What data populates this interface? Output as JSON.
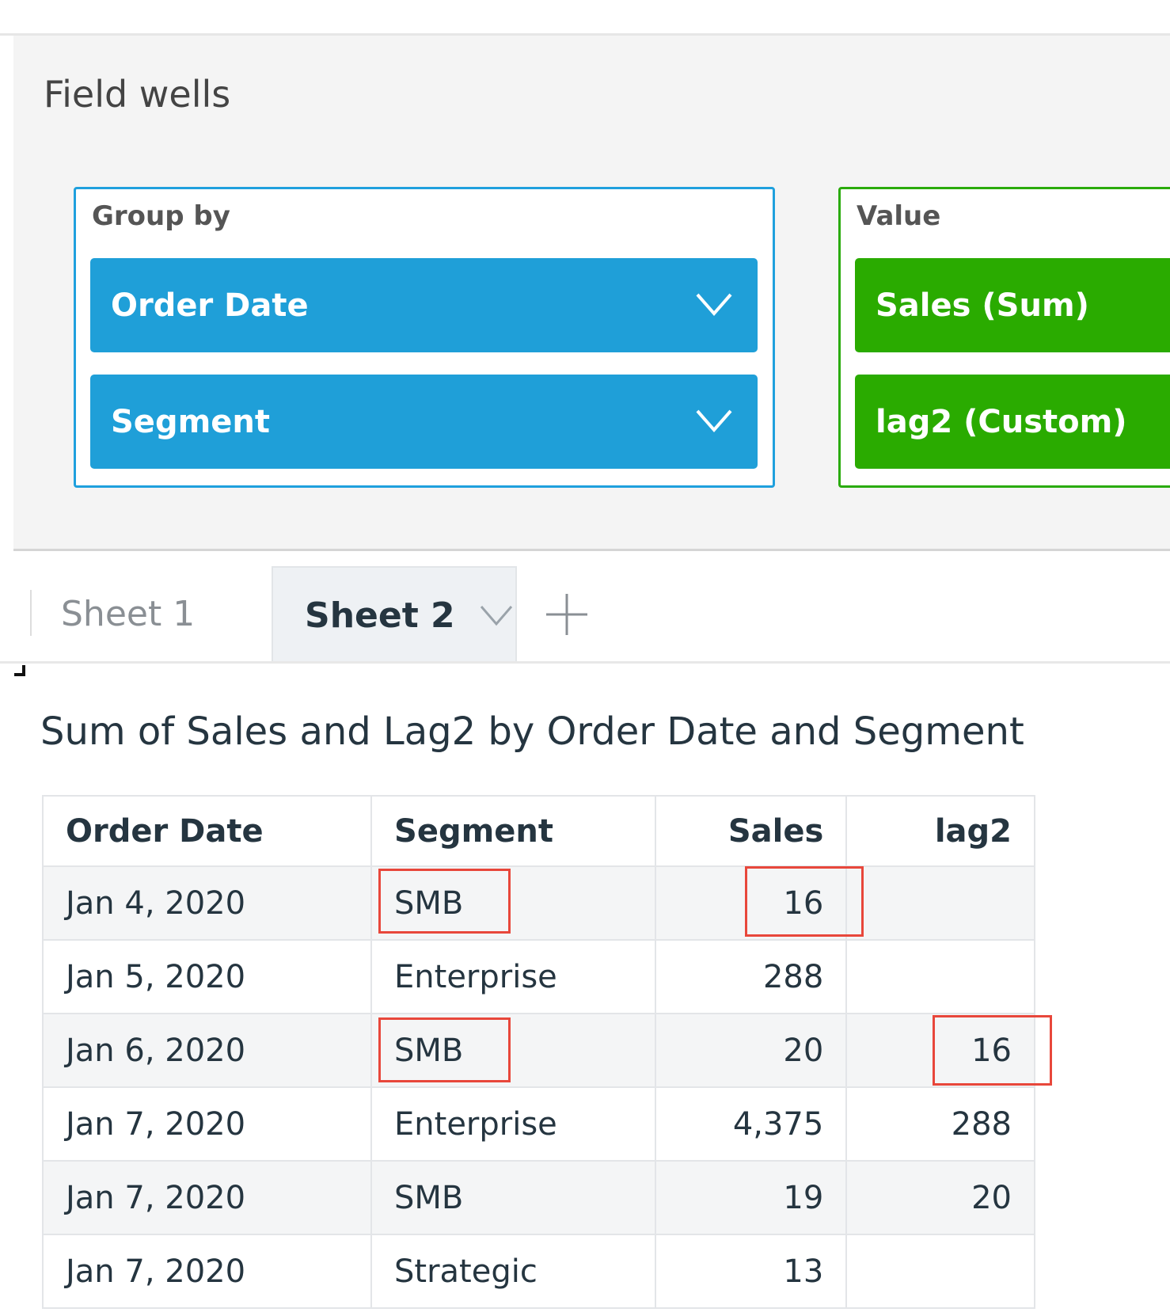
{
  "field_wells": {
    "title": "Field wells",
    "group_by": {
      "label": "Group by",
      "fields": [
        "Order Date",
        "Segment"
      ]
    },
    "value": {
      "label": "Value",
      "fields": [
        "Sales (Sum)",
        "lag2 (Custom)"
      ]
    }
  },
  "tabs": {
    "items": [
      "Sheet 1",
      "Sheet 2"
    ],
    "active": "Sheet 2",
    "add_icon": "plus-icon"
  },
  "visual": {
    "title": "Sum of Sales and Lag2 by Order Date and Segment",
    "columns": [
      "Order Date",
      "Segment",
      "Sales",
      "lag2"
    ],
    "rows": [
      [
        "Jan 4, 2020",
        "SMB",
        "16",
        ""
      ],
      [
        "Jan 5, 2020",
        "Enterprise",
        "288",
        ""
      ],
      [
        "Jan 6, 2020",
        "SMB",
        "20",
        "16"
      ],
      [
        "Jan 7, 2020",
        "Enterprise",
        "4,375",
        "288"
      ],
      [
        "Jan 7, 2020",
        "SMB",
        "19",
        "20"
      ],
      [
        "Jan 7, 2020",
        "Strategic",
        "13",
        ""
      ]
    ]
  },
  "colors": {
    "group_well": "#1f9fd8",
    "value_well": "#2aab00",
    "highlight": "#e8473b"
  }
}
